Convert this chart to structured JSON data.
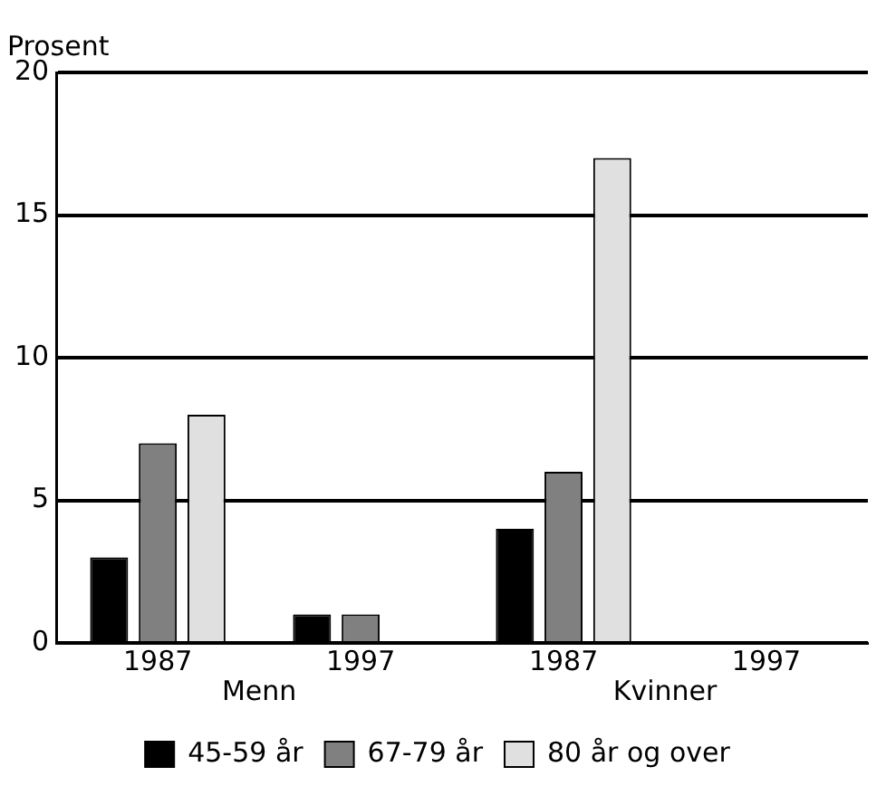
{
  "chart_data": {
    "type": "bar",
    "ylabel": "Prosent",
    "categories": [
      "1987",
      "1997",
      "1987",
      "1997"
    ],
    "series": [
      {
        "name": "45-59 år",
        "color": "#000000",
        "values": [
          3,
          1,
          4,
          0
        ]
      },
      {
        "name": "67-79 år",
        "color": "#808080",
        "values": [
          7,
          1,
          6,
          0
        ]
      },
      {
        "name": "80 år og over",
        "color": "#e0e0e0",
        "values": [
          8,
          0,
          17,
          0
        ]
      }
    ],
    "ylim": [
      0,
      20
    ],
    "yticks": [
      0,
      5,
      10,
      15,
      20
    ],
    "grid": "y",
    "legend": "bottom",
    "annotations": [
      "Menn",
      "Kvinner"
    ]
  }
}
